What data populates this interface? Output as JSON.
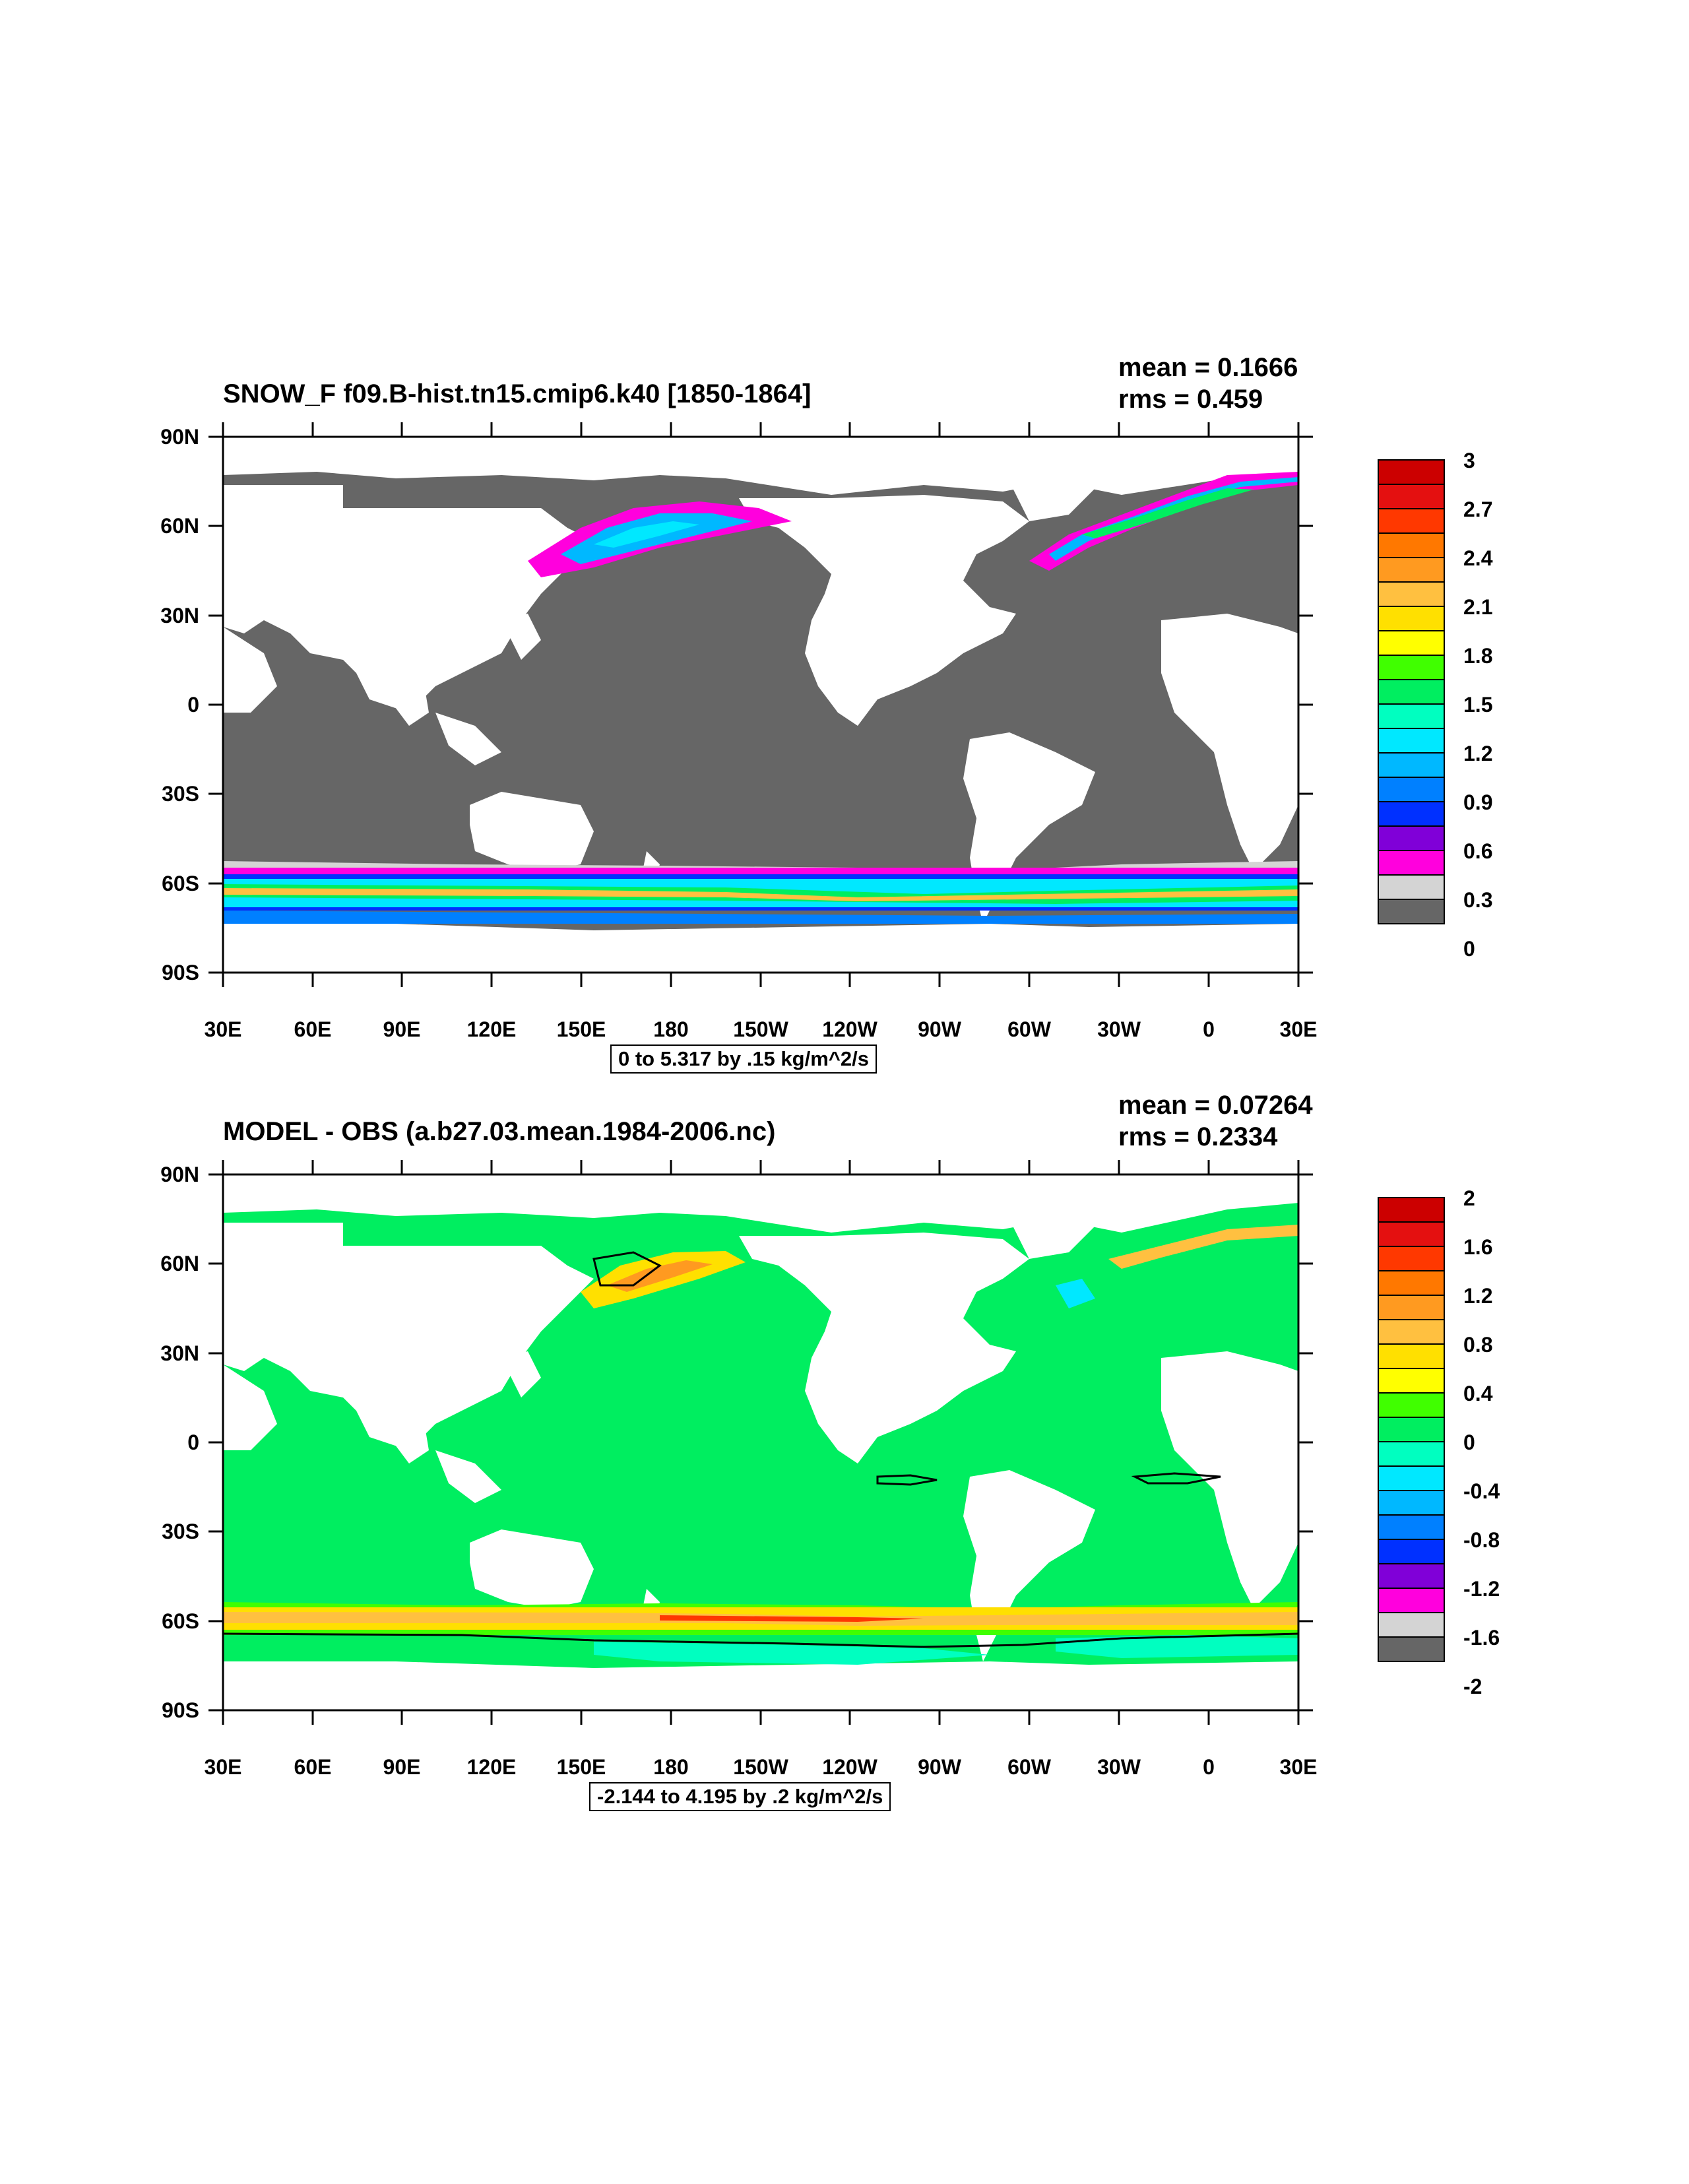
{
  "panels": [
    {
      "title": "SNOW_F f09.B-hist.tn15.cmip6.k40 [1850-1864]",
      "stats": {
        "mean": "mean = 0.1666",
        "rms": "rms = 0.459"
      },
      "info_box": "0 to 5.317 by .15 kg/m^2/s",
      "colorbar_labels": [
        "3",
        "2.7",
        "2.4",
        "2.1",
        "1.8",
        "1.5",
        "1.2",
        "0.9",
        "0.6",
        "0.3",
        "0"
      ],
      "colorbar_colors": [
        "#cc0000",
        "#e41010",
        "#ff3800",
        "#ff7800",
        "#ff9a20",
        "#ffc040",
        "#ffe000",
        "#ffff00",
        "#40ff00",
        "#00ee60",
        "#00ffc0",
        "#00e8ff",
        "#00b8ff",
        "#0080ff",
        "#0030ff",
        "#8000d8",
        "#ff00dd",
        "#d4d4d4",
        "#666666"
      ]
    },
    {
      "title": "MODEL - OBS (a.b27.03.mean.1984-2006.nc)",
      "stats": {
        "mean": "mean = 0.07264",
        "rms": "rms = 0.2334"
      },
      "info_box": "-2.144 to 4.195 by .2 kg/m^2/s",
      "colorbar_labels": [
        "2",
        "1.6",
        "1.2",
        "0.8",
        "0.4",
        "0",
        "-0.4",
        "-0.8",
        "-1.2",
        "-1.6",
        "-2"
      ],
      "colorbar_colors": [
        "#cc0000",
        "#e41010",
        "#ff3800",
        "#ff7800",
        "#ff9a20",
        "#ffc040",
        "#ffe000",
        "#ffff00",
        "#40ff00",
        "#00ee60",
        "#00ffc0",
        "#00e8ff",
        "#00b8ff",
        "#0080ff",
        "#0030ff",
        "#8000d8",
        "#ff00dd",
        "#d4d4d4",
        "#666666"
      ]
    }
  ],
  "chart_data": [
    {
      "type": "heatmap",
      "title": "SNOW_F f09.B-hist.tn15.cmip6.k40 [1850-1864]",
      "units": "kg/m^2/s",
      "range": [
        0,
        5.317
      ],
      "interval": 0.15,
      "mean": 0.1666,
      "rms": 0.459,
      "xlabel": "",
      "ylabel": "",
      "x_ticks": [
        "30E",
        "60E",
        "90E",
        "120E",
        "150E",
        "180",
        "150W",
        "120W",
        "90W",
        "60W",
        "30W",
        "0",
        "30E"
      ],
      "y_ticks": [
        "90N",
        "60N",
        "30N",
        "0",
        "30S",
        "60S",
        "90S"
      ],
      "xlim": [
        30,
        390
      ],
      "ylim": [
        -90,
        90
      ],
      "colorbar_levels": [
        0,
        0.3,
        0.6,
        0.9,
        1.2,
        1.5,
        1.8,
        2.1,
        2.4,
        2.7,
        3
      ]
    },
    {
      "type": "heatmap",
      "title": "MODEL - OBS (a.b27.03.mean.1984-2006.nc)",
      "units": "kg/m^2/s",
      "range": [
        -2.144,
        4.195
      ],
      "interval": 0.2,
      "mean": 0.07264,
      "rms": 0.2334,
      "xlabel": "",
      "ylabel": "",
      "x_ticks": [
        "30E",
        "60E",
        "90E",
        "120E",
        "150E",
        "180",
        "150W",
        "120W",
        "90W",
        "60W",
        "30W",
        "0",
        "30E"
      ],
      "y_ticks": [
        "90N",
        "60N",
        "30N",
        "0",
        "30S",
        "60S",
        "90S"
      ],
      "xlim": [
        30,
        390
      ],
      "ylim": [
        -90,
        90
      ],
      "colorbar_levels": [
        -2,
        -1.6,
        -1.2,
        -0.8,
        -0.4,
        0,
        0.4,
        0.8,
        1.2,
        1.6,
        2
      ]
    }
  ]
}
